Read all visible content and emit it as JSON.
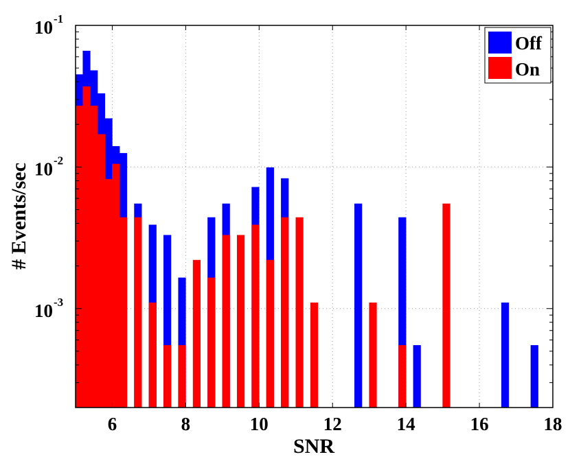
{
  "chart_data": {
    "type": "bar",
    "title": "",
    "xlabel": "SNR",
    "ylabel": "# Events/sec",
    "xlim": [
      5,
      18
    ],
    "ylim": [
      0.0002,
      0.1
    ],
    "yscale": "log",
    "grid": true,
    "x_ticks": [
      {
        "value": 6,
        "label": "6"
      },
      {
        "value": 8,
        "label": "8"
      },
      {
        "value": 10,
        "label": "10"
      },
      {
        "value": 12,
        "label": "12"
      },
      {
        "value": 14,
        "label": "14"
      },
      {
        "value": 16,
        "label": "16"
      },
      {
        "value": 18,
        "label": "18"
      }
    ],
    "y_ticks": [
      {
        "value": 0.001,
        "base": "10",
        "exponent": "-3"
      },
      {
        "value": 0.01,
        "base": "10",
        "exponent": "-2"
      },
      {
        "value": 0.1,
        "base": "10",
        "exponent": "-1"
      }
    ],
    "legend": {
      "position": "top-right"
    },
    "x": [
      5.1,
      5.3,
      5.5,
      5.7,
      5.9,
      6.1,
      6.3,
      6.5,
      6.7,
      6.9,
      7.1,
      7.3,
      7.5,
      7.7,
      7.9,
      8.1,
      8.3,
      8.5,
      8.7,
      8.9,
      9.1,
      9.3,
      9.5,
      9.7,
      9.9,
      10.1,
      10.3,
      10.5,
      10.7,
      10.9,
      11.1,
      11.3,
      11.5,
      11.7,
      11.9,
      12.1,
      12.3,
      12.5,
      12.7,
      12.9,
      13.1,
      13.3,
      13.5,
      13.7,
      13.9,
      14.1,
      14.3,
      14.5,
      14.7,
      14.9,
      15.1,
      15.3,
      15.5,
      15.7,
      15.9,
      16.1,
      16.3,
      16.5,
      16.7,
      16.9,
      17.1,
      17.3,
      17.5
    ],
    "series": [
      {
        "name": "Off",
        "color": "#0000ff",
        "values": [
          0.045,
          0.066,
          0.048,
          0.033,
          0.022,
          0.014,
          0.0125,
          0,
          0.0055,
          0,
          0.0039,
          0,
          0.0033,
          0,
          0.00165,
          0,
          0,
          0,
          0.0044,
          0,
          0.0055,
          0,
          0,
          0,
          0.0072,
          0,
          0.0099,
          0,
          0.0083,
          0,
          0,
          0,
          0,
          0,
          0,
          0,
          0,
          0,
          0.0055,
          0,
          0,
          0,
          0,
          0,
          0.0044,
          0,
          0.00055,
          0,
          0,
          0,
          0,
          0,
          0,
          0,
          0,
          0,
          0,
          0,
          0.0011,
          0,
          0,
          0,
          0.00055
        ]
      },
      {
        "name": "On",
        "color": "#ff0000",
        "values": [
          0.027,
          0.037,
          0.027,
          0.017,
          0.0082,
          0.0105,
          0.0044,
          0,
          0.0044,
          0,
          0.0011,
          0,
          0.00055,
          0,
          0.00055,
          0,
          0.0022,
          0,
          0.00165,
          0,
          0.0033,
          0,
          0.0033,
          0,
          0.0039,
          0,
          0.0022,
          0,
          0.0044,
          0,
          0.0044,
          0,
          0.0011,
          0,
          0,
          0,
          0,
          0,
          0,
          0,
          0.0011,
          0,
          0,
          0,
          0.00055,
          0,
          0,
          0,
          0,
          0,
          0.0055,
          0,
          0,
          0,
          0,
          0,
          0,
          0,
          0,
          0,
          0,
          0,
          0
        ]
      }
    ]
  }
}
